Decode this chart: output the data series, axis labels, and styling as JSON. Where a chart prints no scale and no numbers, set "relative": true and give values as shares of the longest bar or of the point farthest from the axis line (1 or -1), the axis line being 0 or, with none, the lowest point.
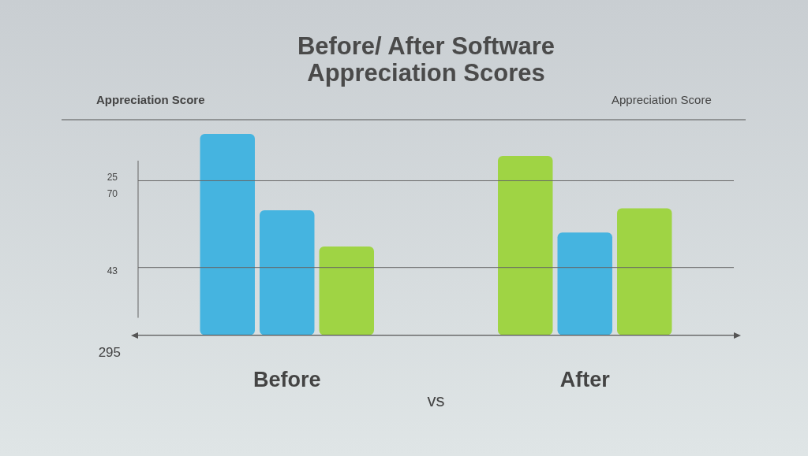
{
  "chart_data": {
    "type": "bar",
    "title": "Before/ After Software Appreciation Scores",
    "ylabel": "Appreciation Score",
    "y2label": "Appreciation Score",
    "categories": [
      "Before",
      "After"
    ],
    "relative": true,
    "legend": false,
    "series": [
      {
        "colors": [
          "#45b4e0",
          "#9fd444"
        ],
        "values": [
          1,
          0.89
        ]
      },
      {
        "colors": [
          "#45b4e0",
          "#45b4e0"
        ],
        "values": [
          0.62,
          0.51
        ]
      },
      {
        "colors": [
          "#9fd444",
          "#9fd444"
        ],
        "values": [
          0.44,
          0.63
        ]
      }
    ],
    "ref_lines": [
      {
        "axis": "y",
        "value": 0.767,
        "color": "#666666"
      },
      {
        "axis": "y",
        "value": 0.336,
        "color": "#666666"
      }
    ],
    "annotations": [
      "vs",
      "25",
      "70",
      "43",
      "295"
    ]
  }
}
